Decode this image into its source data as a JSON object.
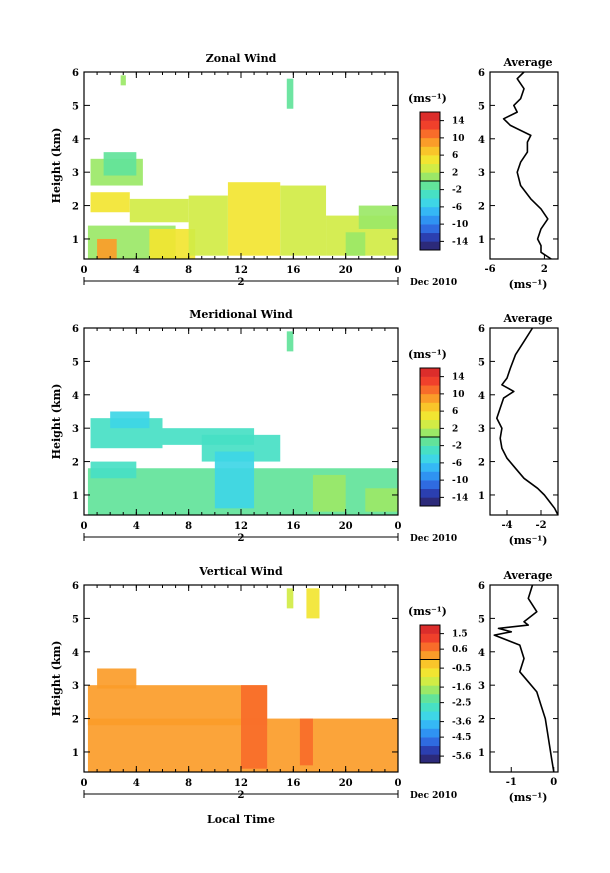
{
  "figure": {
    "xlabel": "Local Time"
  },
  "panels": [
    {
      "key": "zonal",
      "title": "Zonal Wind",
      "ylabel": "Height (km)",
      "unit": "(ms⁻¹)",
      "date_label": "Dec 2010",
      "day_label": "2",
      "average_title": "Average",
      "average_xlabel": "(ms⁻¹)"
    },
    {
      "key": "meridional",
      "title": "Meridional Wind",
      "ylabel": "Height (km)",
      "unit": "(ms⁻¹)",
      "date_label": "Dec 2010",
      "day_label": "2",
      "average_title": "Average",
      "average_xlabel": "(ms⁻¹)"
    },
    {
      "key": "vertical",
      "title": "Vertical Wind",
      "ylabel": "Height (km)",
      "unit": "(ms⁻¹)",
      "date_label": "Dec 2010",
      "day_label": "2",
      "average_title": "Average",
      "average_xlabel": "(ms⁻¹)"
    }
  ],
  "chart_data": [
    {
      "type": "heatmap",
      "title": "Zonal Wind",
      "ylabel": "Height (km)",
      "x_ticks": [
        "0",
        "4",
        "8",
        "12",
        "16",
        "20",
        "0"
      ],
      "y_ticks": [
        "1",
        "2",
        "3",
        "4",
        "5",
        "6"
      ],
      "xlim": [
        0,
        24
      ],
      "ylim": [
        0.4,
        6
      ],
      "colorbar": {
        "ticks": [
          14,
          10,
          6,
          2,
          -2,
          -6,
          -10,
          -14
        ],
        "vmin": -16,
        "vmax": 16
      },
      "regions": [
        {
          "x0": 0.5,
          "x1": 4.5,
          "y0": 2.6,
          "y1": 3.4,
          "value": 1
        },
        {
          "x0": 0.5,
          "x1": 3.5,
          "y0": 1.8,
          "y1": 2.4,
          "value": 4
        },
        {
          "x0": 1.5,
          "x1": 4.0,
          "y0": 2.9,
          "y1": 3.6,
          "value": -2
        },
        {
          "x0": 0.3,
          "x1": 7.0,
          "y0": 0.4,
          "y1": 1.4,
          "value": 0
        },
        {
          "x0": 1.0,
          "x1": 2.5,
          "y0": 0.4,
          "y1": 1.0,
          "value": 8
        },
        {
          "x0": 5.0,
          "x1": 8.5,
          "y0": 0.4,
          "y1": 1.3,
          "value": 5
        },
        {
          "x0": 3.5,
          "x1": 8.0,
          "y0": 1.5,
          "y1": 2.2,
          "value": 3
        },
        {
          "x0": 8.0,
          "x1": 11.0,
          "y0": 0.5,
          "y1": 2.3,
          "value": 2
        },
        {
          "x0": 11.0,
          "x1": 15.0,
          "y0": 0.5,
          "y1": 2.7,
          "value": 4
        },
        {
          "x0": 15.0,
          "x1": 18.5,
          "y0": 0.5,
          "y1": 2.6,
          "value": 3
        },
        {
          "x0": 18.5,
          "x1": 24.0,
          "y0": 0.5,
          "y1": 1.7,
          "value": 2
        },
        {
          "x0": 21.0,
          "x1": 24.0,
          "y0": 1.3,
          "y1": 2.0,
          "value": 0
        },
        {
          "x0": 20.0,
          "x1": 21.5,
          "y0": 0.5,
          "y1": 1.2,
          "value": 1
        },
        {
          "x0": 15.5,
          "x1": 16.0,
          "y0": 4.9,
          "y1": 5.8,
          "value": -2
        },
        {
          "x0": 2.8,
          "x1": 3.2,
          "y0": 5.6,
          "y1": 5.9,
          "value": 0
        }
      ],
      "average": {
        "xlim": [
          -6,
          4
        ],
        "x_ticks": [
          "-6",
          "2"
        ],
        "height": [
          0.4,
          0.6,
          0.8,
          1.0,
          1.3,
          1.6,
          1.9,
          2.2,
          2.6,
          3.0,
          3.3,
          3.6,
          3.9,
          4.1,
          4.4,
          4.6,
          4.8,
          5.0,
          5.2,
          5.5,
          5.8,
          6.0
        ],
        "value": [
          3,
          1.5,
          1.5,
          1,
          1.5,
          2.5,
          1.5,
          0,
          -1.5,
          -2,
          -1.5,
          -0.5,
          -0.5,
          0,
          -3,
          -4,
          -2,
          -2.5,
          -1.5,
          -1,
          -2,
          -1
        ]
      }
    },
    {
      "type": "heatmap",
      "title": "Meridional Wind",
      "ylabel": "Height (km)",
      "x_ticks": [
        "0",
        "4",
        "8",
        "12",
        "16",
        "20",
        "0"
      ],
      "y_ticks": [
        "1",
        "2",
        "3",
        "4",
        "5",
        "6"
      ],
      "xlim": [
        0,
        24
      ],
      "ylim": [
        0.4,
        6
      ],
      "colorbar": {
        "ticks": [
          14,
          10,
          6,
          2,
          -2,
          -6,
          -10,
          -14
        ],
        "vmin": -16,
        "vmax": 16
      },
      "regions": [
        {
          "x0": 0.5,
          "x1": 6.0,
          "y0": 2.4,
          "y1": 3.3,
          "value": -4
        },
        {
          "x0": 2.0,
          "x1": 5.0,
          "y0": 3.0,
          "y1": 3.5,
          "value": -6
        },
        {
          "x0": 6.0,
          "x1": 13.0,
          "y0": 2.5,
          "y1": 3.0,
          "value": -3
        },
        {
          "x0": 9.0,
          "x1": 15.0,
          "y0": 2.0,
          "y1": 2.8,
          "value": -4
        },
        {
          "x0": 0.3,
          "x1": 24.0,
          "y0": 0.4,
          "y1": 1.8,
          "value": -2
        },
        {
          "x0": 10.0,
          "x1": 13.0,
          "y0": 0.6,
          "y1": 2.3,
          "value": -5
        },
        {
          "x0": 0.5,
          "x1": 4.0,
          "y0": 1.5,
          "y1": 2.0,
          "value": -3
        },
        {
          "x0": 17.5,
          "x1": 20.0,
          "y0": 0.5,
          "y1": 1.6,
          "value": 1
        },
        {
          "x0": 21.5,
          "x1": 24.0,
          "y0": 0.5,
          "y1": 1.2,
          "value": 0
        },
        {
          "x0": 15.5,
          "x1": 16.0,
          "y0": 5.3,
          "y1": 5.9,
          "value": -2
        }
      ],
      "average": {
        "xlim": [
          -5,
          -1
        ],
        "x_ticks": [
          "-4",
          "-2"
        ],
        "height": [
          0.4,
          0.6,
          0.8,
          1.0,
          1.2,
          1.5,
          1.8,
          2.1,
          2.4,
          2.7,
          3.0,
          3.3,
          3.6,
          3.9,
          4.1,
          4.3,
          4.5,
          4.8,
          5.2,
          5.6,
          6.0
        ],
        "value": [
          -1,
          -1.2,
          -1.5,
          -1.8,
          -2.2,
          -3,
          -3.5,
          -4,
          -4.3,
          -4.4,
          -4.3,
          -4.6,
          -4.4,
          -4.2,
          -3.6,
          -4.3,
          -4.0,
          -3.8,
          -3.5,
          -3.0,
          -2.5
        ]
      }
    },
    {
      "type": "heatmap",
      "title": "Vertical Wind",
      "ylabel": "Height (km)",
      "x_ticks": [
        "0",
        "4",
        "8",
        "12",
        "16",
        "20",
        "0"
      ],
      "y_ticks": [
        "1",
        "2",
        "3",
        "4",
        "5",
        "6"
      ],
      "xlim": [
        0,
        24
      ],
      "ylim": [
        0.4,
        6
      ],
      "colorbar": {
        "ticks": [
          1.5,
          0.6,
          -0.5,
          -1.6,
          -2.5,
          -3.6,
          -4.5,
          -5.6
        ],
        "vmin": -6,
        "vmax": 2
      },
      "regions": [
        {
          "x0": 0.3,
          "x1": 24.0,
          "y0": 0.4,
          "y1": 2.0,
          "value": 0.3
        },
        {
          "x0": 0.3,
          "x1": 14.0,
          "y0": 1.8,
          "y1": 3.0,
          "value": 0.3
        },
        {
          "x0": 1.0,
          "x1": 4.0,
          "y0": 2.9,
          "y1": 3.5,
          "value": 0.3
        },
        {
          "x0": 12.0,
          "x1": 14.0,
          "y0": 0.5,
          "y1": 3.0,
          "value": 0.6
        },
        {
          "x0": 16.5,
          "x1": 17.5,
          "y0": 0.6,
          "y1": 2.0,
          "value": 0.6
        },
        {
          "x0": 15.5,
          "x1": 16.0,
          "y0": 5.3,
          "y1": 5.9,
          "value": -1.2
        },
        {
          "x0": 17.0,
          "x1": 18.0,
          "y0": 5.0,
          "y1": 5.9,
          "value": -1.0
        }
      ],
      "average": {
        "xlim": [
          -1.5,
          0.1
        ],
        "x_ticks": [
          "-1",
          "0"
        ],
        "height": [
          0.4,
          0.8,
          1.2,
          1.6,
          2.0,
          2.4,
          2.8,
          3.1,
          3.4,
          3.8,
          4.2,
          4.5,
          4.6,
          4.7,
          4.8,
          4.9,
          5.2,
          5.6,
          6.0
        ],
        "value": [
          0,
          -0.05,
          -0.1,
          -0.15,
          -0.2,
          -0.3,
          -0.4,
          -0.6,
          -0.8,
          -0.7,
          -0.8,
          -1.4,
          -1.0,
          -1.3,
          -0.6,
          -0.7,
          -0.4,
          -0.6,
          -0.5
        ]
      }
    }
  ]
}
